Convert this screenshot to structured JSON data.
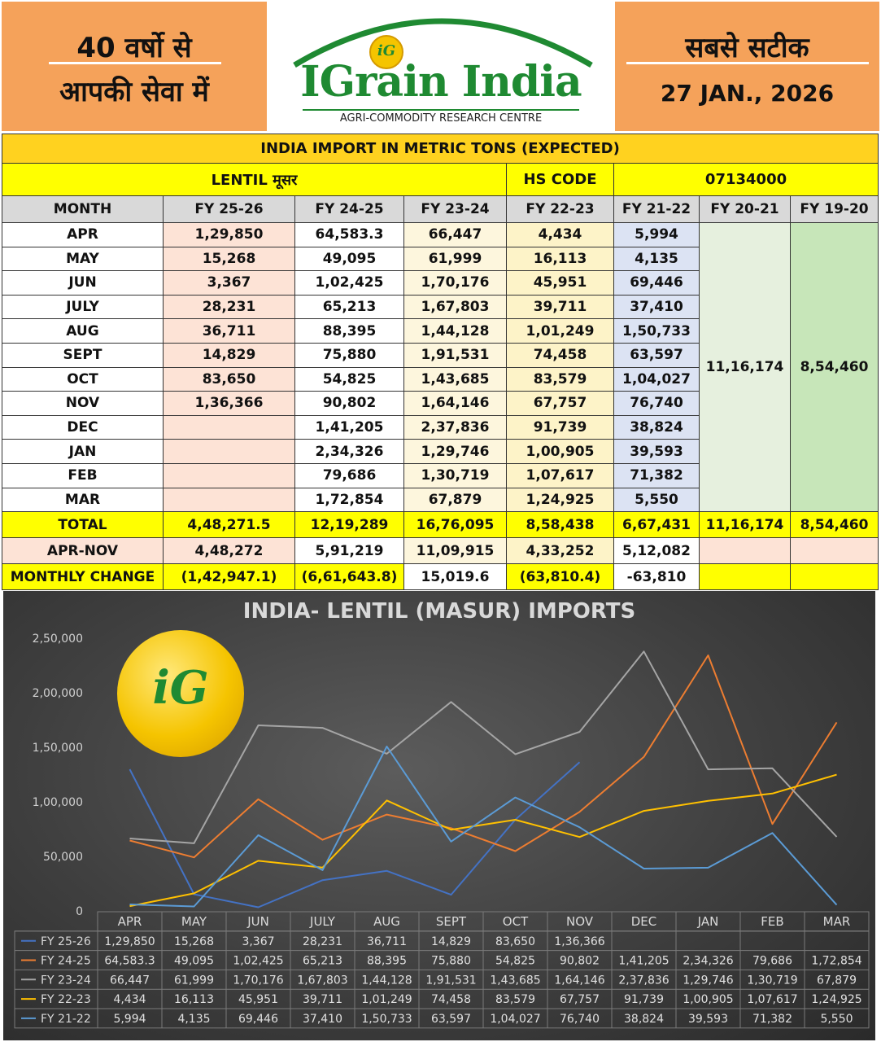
{
  "header": {
    "left_line1": "40 वर्षो से",
    "left_line2": "आपकी सेवा में",
    "brand": "IGrain India",
    "brand_badge": "iG",
    "brand_sub": "AGRI-COMMODITY RESEARCH CENTRE",
    "right_line1": "सबसे सटीक",
    "date": "27 JAN., 2026"
  },
  "table": {
    "title": "INDIA IMPORT IN METRIC TONS (EXPECTED)",
    "commodity": "LENTIL मूसर",
    "hs_label": "HS CODE",
    "hs_code": "07134000",
    "columns": [
      "MONTH",
      "FY 25-26",
      "FY 24-25",
      "FY 23-24",
      "FY 22-23",
      "FY 21-22",
      "FY 20-21",
      "FY 19-20"
    ],
    "rows": [
      {
        "month": "APR",
        "fy26": "1,29,850",
        "fy25": "64,583.3",
        "fy24": "66,447",
        "fy23": "4,434",
        "fy22": "5,994"
      },
      {
        "month": "MAY",
        "fy26": "15,268",
        "fy25": "49,095",
        "fy24": "61,999",
        "fy23": "16,113",
        "fy22": "4,135"
      },
      {
        "month": "JUN",
        "fy26": "3,367",
        "fy25": "1,02,425",
        "fy24": "1,70,176",
        "fy23": "45,951",
        "fy22": "69,446"
      },
      {
        "month": "JULY",
        "fy26": "28,231",
        "fy25": "65,213",
        "fy24": "1,67,803",
        "fy23": "39,711",
        "fy22": "37,410"
      },
      {
        "month": "AUG",
        "fy26": "36,711",
        "fy25": "88,395",
        "fy24": "1,44,128",
        "fy23": "1,01,249",
        "fy22": "1,50,733"
      },
      {
        "month": "SEPT",
        "fy26": "14,829",
        "fy25": "75,880",
        "fy24": "1,91,531",
        "fy23": "74,458",
        "fy22": "63,597"
      },
      {
        "month": "OCT",
        "fy26": "83,650",
        "fy25": "54,825",
        "fy24": "1,43,685",
        "fy23": "83,579",
        "fy22": "1,04,027"
      },
      {
        "month": "NOV",
        "fy26": "1,36,366",
        "fy25": "90,802",
        "fy24": "1,64,146",
        "fy23": "67,757",
        "fy22": "76,740"
      },
      {
        "month": "DEC",
        "fy26": "",
        "fy25": "1,41,205",
        "fy24": "2,37,836",
        "fy23": "91,739",
        "fy22": "38,824"
      },
      {
        "month": "JAN",
        "fy26": "",
        "fy25": "2,34,326",
        "fy24": "1,29,746",
        "fy23": "1,00,905",
        "fy22": "39,593"
      },
      {
        "month": "FEB",
        "fy26": "",
        "fy25": "79,686",
        "fy24": "1,30,719",
        "fy23": "1,07,617",
        "fy22": "71,382"
      },
      {
        "month": "MAR",
        "fy26": "",
        "fy25": "1,72,854",
        "fy24": "67,879",
        "fy23": "1,24,925",
        "fy22": "5,550"
      }
    ],
    "fy21_merged": "11,16,174",
    "fy20_merged": "8,54,460",
    "total": {
      "label": "TOTAL",
      "fy26": "4,48,271.5",
      "fy25": "12,19,289",
      "fy24": "16,76,095",
      "fy23": "8,58,438",
      "fy22": "6,67,431",
      "fy21": "11,16,174",
      "fy20": "8,54,460"
    },
    "aprnov": {
      "label": "APR-NOV",
      "fy26": "4,48,272",
      "fy25": "5,91,219",
      "fy24": "11,09,915",
      "fy23": "4,33,252",
      "fy22": "5,12,082"
    },
    "monthly": {
      "label": "MONTHLY CHANGE",
      "fy26": "(1,42,947.1)",
      "fy25": "(6,61,643.8)",
      "fy24": "15,019.6",
      "fy23": "(63,810.4)",
      "fy22": "-63,810"
    }
  },
  "chart_data": {
    "type": "line",
    "title": "INDIA- LENTIL (MASUR) IMPORTS",
    "categories": [
      "APR",
      "MAY",
      "JUN",
      "JULY",
      "AUG",
      "SEPT",
      "OCT",
      "NOV",
      "DEC",
      "JAN",
      "FEB",
      "MAR"
    ],
    "ylim": [
      0,
      250000
    ],
    "yticks": [
      "0",
      "50,000",
      "1,00,000",
      "1,50,000",
      "2,00,000",
      "2,50,000"
    ],
    "grid": false,
    "legend": "data-table-below",
    "series": [
      {
        "name": "FY 25-26",
        "color": "#4472c4",
        "values": [
          129850,
          15268,
          3367,
          28231,
          36711,
          14829,
          83650,
          136366,
          null,
          null,
          null,
          null
        ],
        "labels": [
          "1,29,850",
          "15,268",
          "3,367",
          "28,231",
          "36,711",
          "14,829",
          "83,650",
          "1,36,366",
          "",
          "",
          "",
          ""
        ]
      },
      {
        "name": "FY 24-25",
        "color": "#ed7d31",
        "values": [
          64583.3,
          49095,
          102425,
          65213,
          88395,
          75880,
          54825,
          90802,
          141205,
          234326,
          79686,
          172854
        ],
        "labels": [
          "64,583.3",
          "49,095",
          "1,02,425",
          "65,213",
          "88,395",
          "75,880",
          "54,825",
          "90,802",
          "1,41,205",
          "2,34,326",
          "79,686",
          "1,72,854"
        ]
      },
      {
        "name": "FY 23-24",
        "color": "#a5a5a5",
        "values": [
          66447,
          61999,
          170176,
          167803,
          144128,
          191531,
          143685,
          164146,
          237836,
          129746,
          130719,
          67879
        ],
        "labels": [
          "66,447",
          "61,999",
          "1,70,176",
          "1,67,803",
          "1,44,128",
          "1,91,531",
          "1,43,685",
          "1,64,146",
          "2,37,836",
          "1,29,746",
          "1,30,719",
          "67,879"
        ]
      },
      {
        "name": "FY 22-23",
        "color": "#ffc000",
        "values": [
          4434,
          16113,
          45951,
          39711,
          101249,
          74458,
          83579,
          67757,
          91739,
          100905,
          107617,
          124925
        ],
        "labels": [
          "4,434",
          "16,113",
          "45,951",
          "39,711",
          "1,01,249",
          "74,458",
          "83,579",
          "67,757",
          "91,739",
          "1,00,905",
          "1,07,617",
          "1,24,925"
        ]
      },
      {
        "name": "FY 21-22",
        "color": "#5b9bd5",
        "values": [
          5994,
          4135,
          69446,
          37410,
          150733,
          63597,
          104027,
          76740,
          38824,
          39593,
          71382,
          5550
        ],
        "labels": [
          "5,994",
          "4,135",
          "69,446",
          "37,410",
          "1,50,733",
          "63,597",
          "1,04,027",
          "76,740",
          "38,824",
          "39,593",
          "71,382",
          "5,550"
        ]
      }
    ]
  }
}
